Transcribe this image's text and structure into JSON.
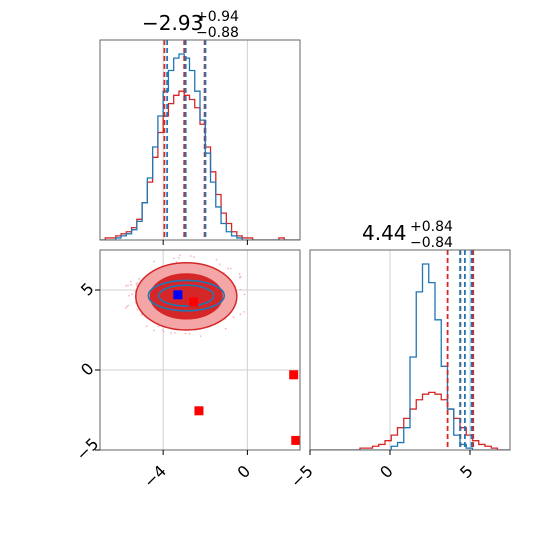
{
  "colors": {
    "red": "#d62728",
    "blue": "#1f77b4",
    "marker_red": "#ff0000",
    "marker_blue": "#0000ff",
    "grid": "#d0d0d0",
    "axes": "#666666",
    "contour_light_red": "#f4a6a6",
    "contour_dark_red": "#d62728"
  },
  "titles": {
    "param1": {
      "main": "−2.93",
      "sup": "+0.94",
      "sub": "−0.88"
    },
    "param2": {
      "main": "4.44",
      "sup": "+0.84",
      "sub": "−0.84"
    }
  },
  "chart_data": [
    {
      "type": "histogram",
      "panel": "param1-marginal",
      "title": "−2.93 +0.94 −0.88",
      "xlim": [
        -7,
        2.5
      ],
      "xticks": [
        -4,
        0
      ],
      "grid": true,
      "quantile_lines": {
        "red": [
          -3.94,
          -3.0,
          -2.03
        ],
        "blue": [
          -3.81,
          -2.93,
          -1.99
        ]
      },
      "series": [
        {
          "color": "red",
          "values": [
            0,
            1,
            1,
            2,
            3,
            4,
            6,
            10,
            18,
            28,
            40,
            52,
            60,
            66,
            70,
            72,
            70,
            68,
            64,
            56,
            45,
            33,
            22,
            13,
            8,
            4,
            2,
            1,
            1,
            0,
            0,
            0,
            0,
            0,
            1,
            0,
            0,
            0
          ]
        },
        {
          "color": "blue",
          "values": [
            0,
            0,
            0,
            1,
            2,
            3,
            5,
            9,
            18,
            30,
            45,
            60,
            72,
            82,
            88,
            90,
            88,
            82,
            72,
            58,
            42,
            28,
            16,
            8,
            4,
            2,
            1,
            0,
            0,
            0,
            0,
            0,
            0,
            0,
            0,
            0,
            0,
            0
          ]
        }
      ]
    },
    {
      "type": "histogram",
      "panel": "param2-marginal",
      "title": "4.44 +0.84 −0.84",
      "xlim": [
        -5,
        7.5
      ],
      "xticks": [
        -5,
        0,
        5
      ],
      "grid": true,
      "quantile_lines": {
        "red": [
          3.6,
          4.4,
          5.2
        ],
        "blue": [
          4.38,
          4.68,
          5.1
        ]
      },
      "series": [
        {
          "color": "red",
          "values": [
            0,
            0,
            0,
            0,
            0,
            0,
            0,
            0,
            1,
            1,
            2,
            3,
            5,
            8,
            12,
            17,
            22,
            27,
            30,
            31,
            30,
            27,
            22,
            17,
            12,
            8,
            5,
            3,
            2,
            1,
            0,
            0
          ]
        },
        {
          "color": "blue",
          "values": [
            0,
            0,
            0,
            0,
            0,
            0,
            0,
            0,
            0,
            0,
            0,
            0,
            0,
            2,
            4,
            12,
            50,
            85,
            100,
            90,
            70,
            45,
            22,
            8,
            3,
            1,
            0,
            0,
            0,
            0,
            0,
            0
          ]
        }
      ]
    },
    {
      "type": "scatter",
      "panel": "param1-vs-param2",
      "xlim": [
        -7,
        2.5
      ],
      "ylim": [
        -5,
        7.5
      ],
      "xticks": [
        -4,
        0
      ],
      "yticks": [
        -5,
        0,
        5
      ],
      "grid": true,
      "contours": {
        "red": [
          {
            "cx": -2.9,
            "cy": 4.6,
            "rx": 2.4,
            "ry": 2.1,
            "fill": "light"
          },
          {
            "cx": -2.9,
            "cy": 4.6,
            "rx": 1.7,
            "ry": 1.4,
            "fill": "dark"
          }
        ],
        "blue": [
          {
            "cx": -2.9,
            "cy": 4.65,
            "rx": 1.8,
            "ry": 0.95
          },
          {
            "cx": -2.9,
            "cy": 4.65,
            "rx": 1.3,
            "ry": 0.65
          }
        ]
      },
      "markers": [
        {
          "x": -2.55,
          "y": 4.25,
          "color": "red"
        },
        {
          "x": -3.3,
          "y": 4.7,
          "color": "blue"
        },
        {
          "x": 2.2,
          "y": -0.3,
          "color": "red"
        },
        {
          "x": -2.3,
          "y": -2.55,
          "color": "red"
        },
        {
          "x": 2.3,
          "y": -4.4,
          "color": "red"
        }
      ]
    }
  ]
}
